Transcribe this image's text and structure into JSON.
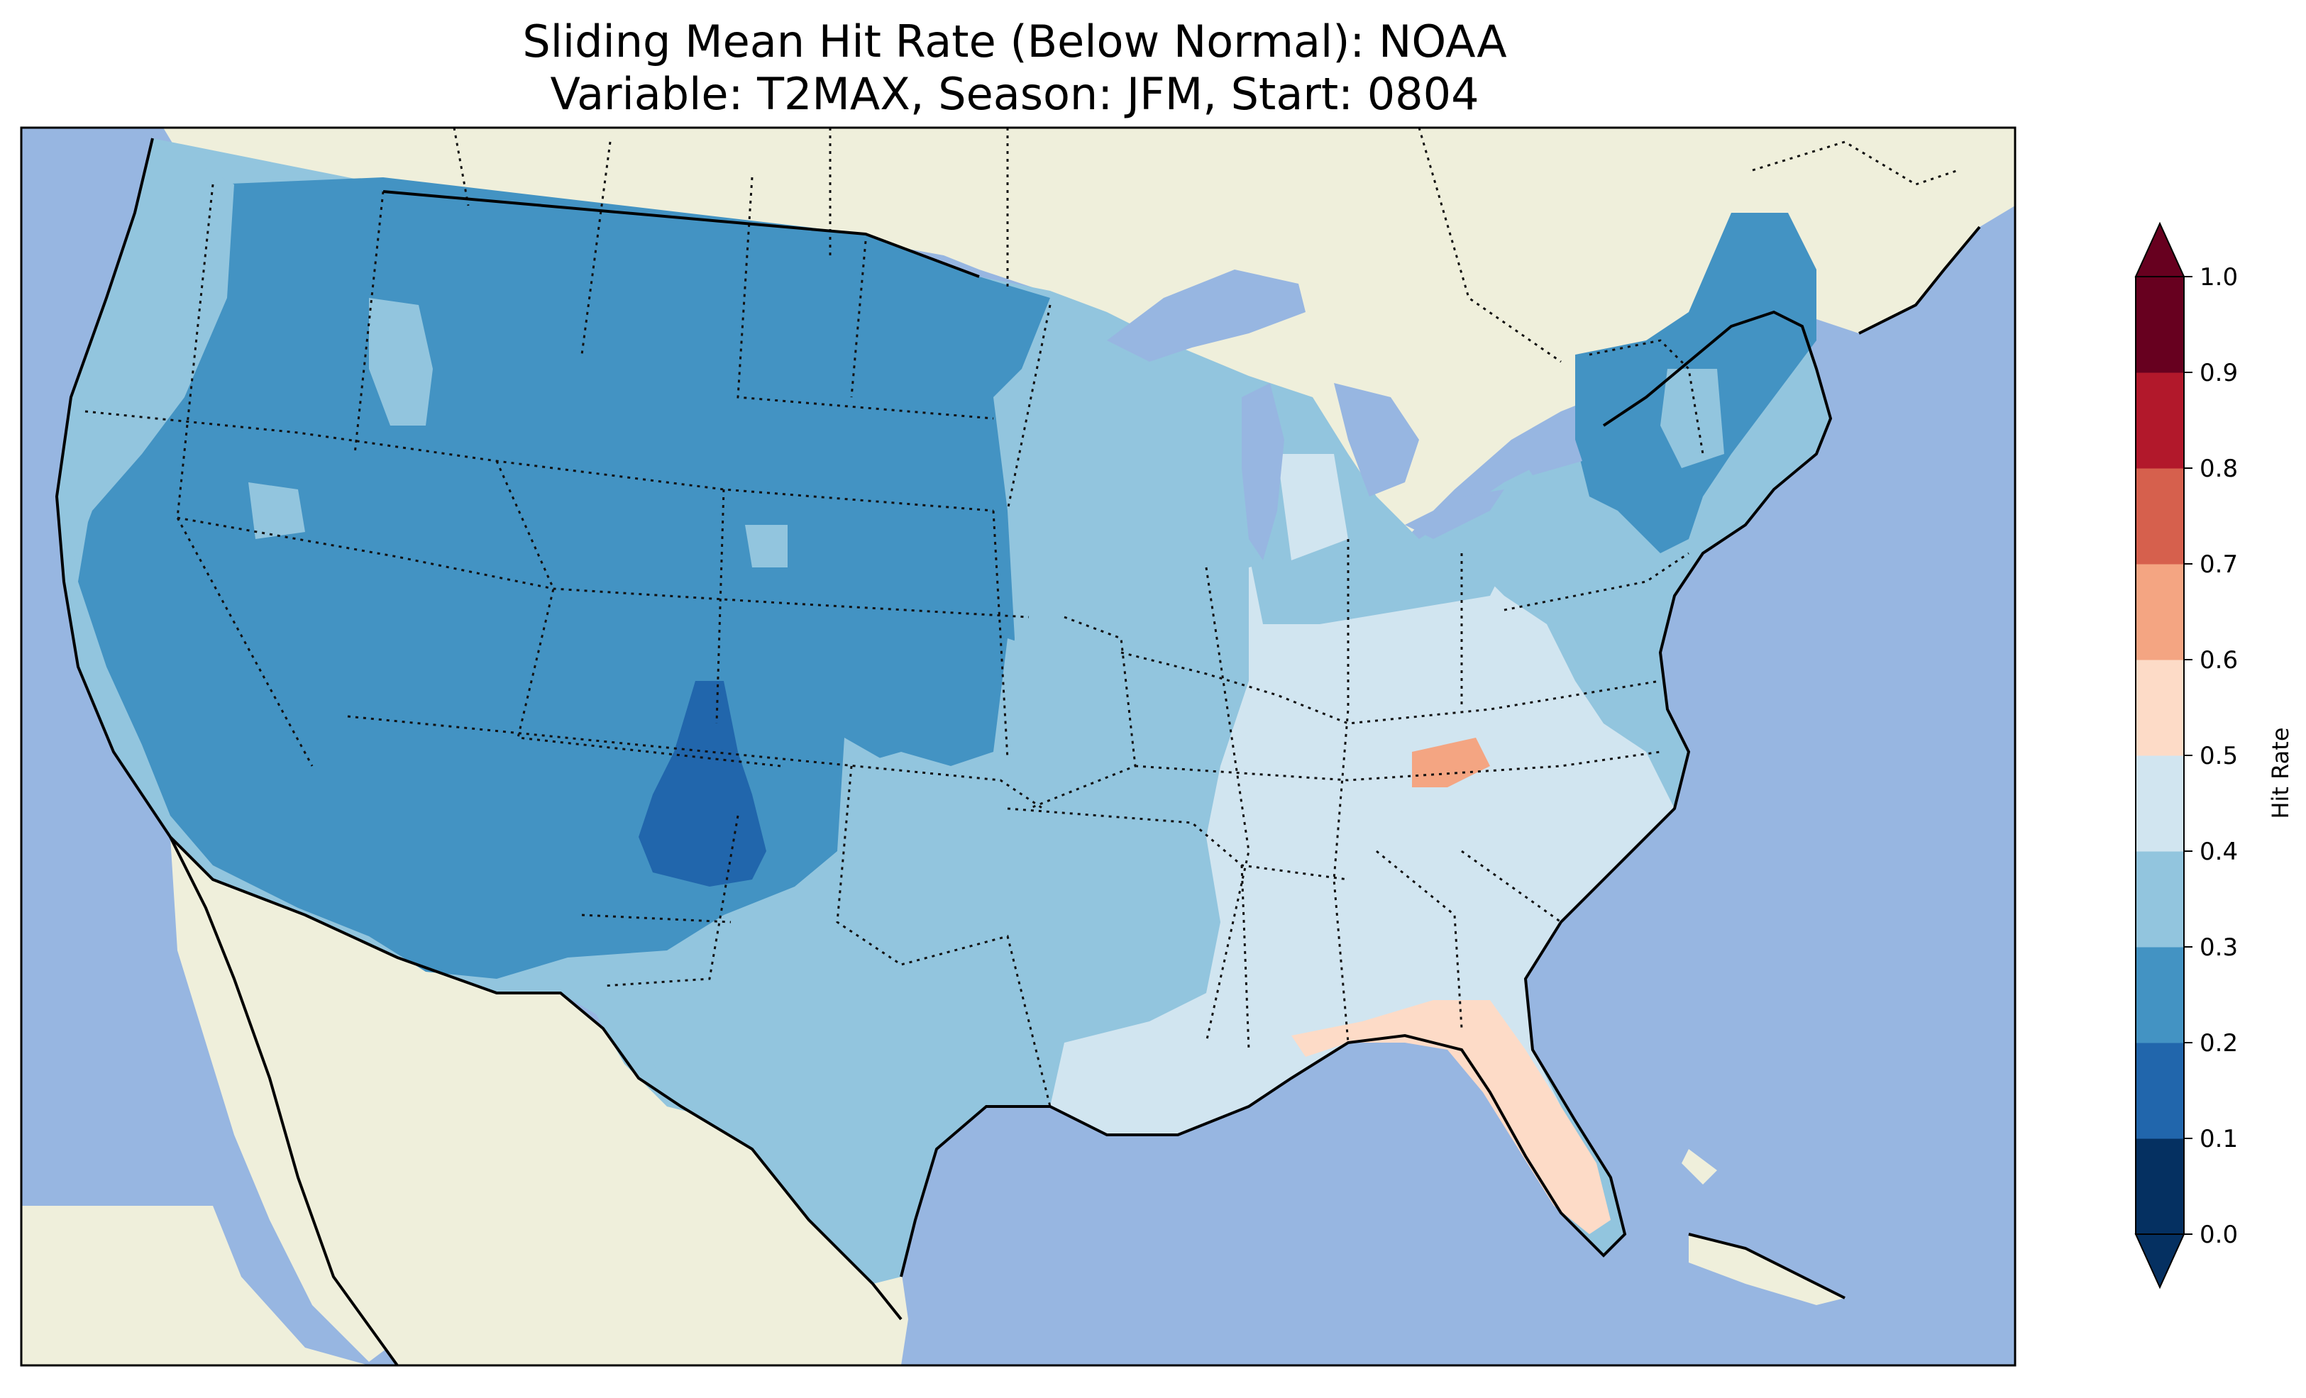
{
  "title": {
    "line1": "Sliding Mean Hit Rate (Below Normal): NOAA",
    "line2": "Variable: T2MAX, Season: JFM, Start: 0804"
  },
  "colors": {
    "ocean": "#97b6e1",
    "land": "#efefdb",
    "lake": "#97b6e1"
  },
  "colorbar": {
    "label": "Hit Rate",
    "ticks": [
      "0.0",
      "0.1",
      "0.2",
      "0.3",
      "0.4",
      "0.5",
      "0.6",
      "0.7",
      "0.8",
      "0.9",
      "1.0"
    ],
    "colors": [
      "#053061",
      "#2166ac",
      "#4393c3",
      "#92c5de",
      "#d1e5f0",
      "#fddbc7",
      "#f4a582",
      "#d6604d",
      "#b2182b",
      "#67001f"
    ],
    "under_color": "#053061",
    "over_color": "#67001f"
  },
  "regions": [
    {
      "name": "interior-west",
      "value_band": "0.2-0.3"
    },
    {
      "name": "west-coast",
      "value_band": "0.3-0.4"
    },
    {
      "name": "central-plains",
      "value_band": "0.3-0.4"
    },
    {
      "name": "southeast",
      "value_band": "0.4-0.5"
    },
    {
      "name": "colorado-new-mexico",
      "value_band": "0.1-0.2"
    },
    {
      "name": "northeast",
      "value_band": "0.2-0.3"
    },
    {
      "name": "florida",
      "value_band": "0.5-0.6"
    },
    {
      "name": "tennessee-spot",
      "value_band": "0.6-0.7"
    }
  ]
}
